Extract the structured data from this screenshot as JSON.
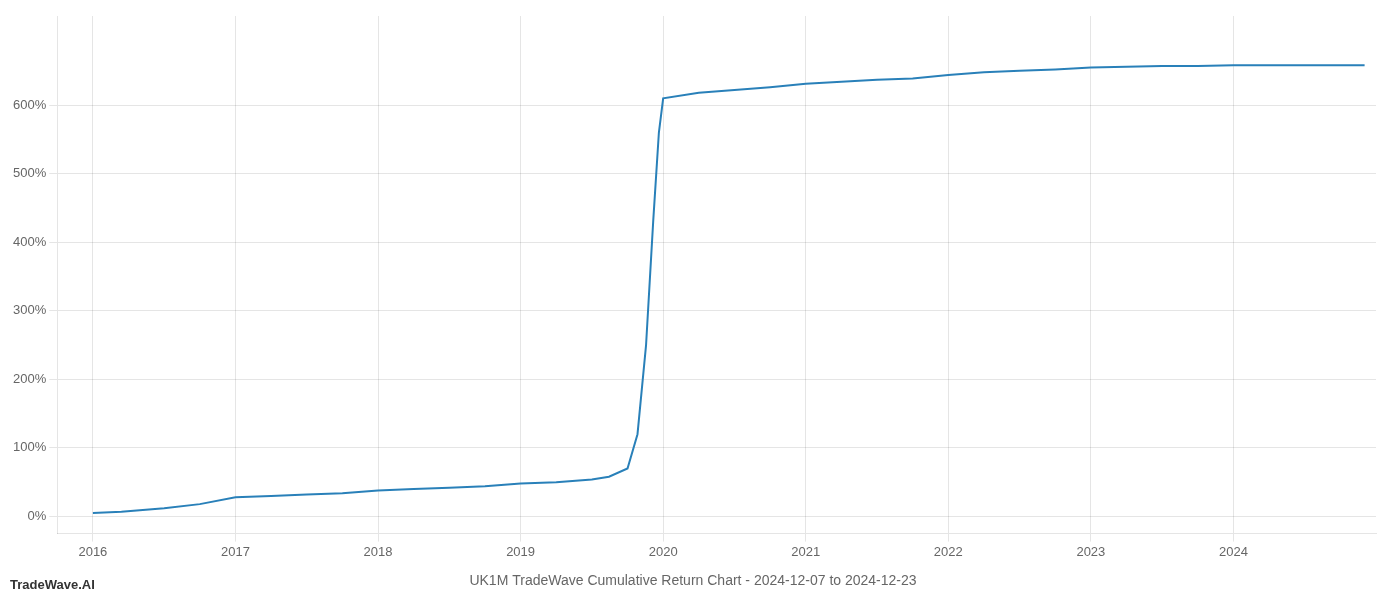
{
  "chart_data": {
    "type": "line",
    "title": "UK1M TradeWave Cumulative Return Chart - 2024-12-07 to 2024-12-23",
    "annotations": [
      "TradeWave.AI"
    ],
    "x": [
      2016.0,
      2016.2,
      2016.5,
      2016.75,
      2017.0,
      2017.25,
      2017.5,
      2017.75,
      2018.0,
      2018.25,
      2018.5,
      2018.75,
      2019.0,
      2019.25,
      2019.5,
      2019.62,
      2019.75,
      2019.82,
      2019.88,
      2019.93,
      2019.97,
      2020.0,
      2020.25,
      2020.5,
      2020.75,
      2021.0,
      2021.25,
      2021.5,
      2021.75,
      2022.0,
      2022.25,
      2022.5,
      2022.75,
      2023.0,
      2023.25,
      2023.5,
      2023.75,
      2024.0,
      2024.25,
      2024.5,
      2024.75,
      2024.92
    ],
    "values": [
      5,
      7,
      12,
      18,
      28,
      30,
      32,
      34,
      38,
      40,
      42,
      44,
      48,
      50,
      54,
      58,
      70,
      120,
      250,
      430,
      560,
      610,
      618,
      622,
      626,
      631,
      634,
      637,
      639,
      644,
      648,
      650,
      652,
      655,
      656,
      657,
      657,
      658,
      658,
      658,
      658,
      658
    ],
    "color": "#2980b9",
    "xlim": [
      2015.75,
      2025.0
    ],
    "ylim": [
      -25,
      730
    ],
    "xticks": [
      2016,
      2017,
      2018,
      2019,
      2020,
      2021,
      2022,
      2023,
      2024
    ],
    "yticks": [
      {
        "value": 0,
        "label": "0%"
      },
      {
        "value": 100,
        "label": "100%"
      },
      {
        "value": 200,
        "label": "200%"
      },
      {
        "value": 300,
        "label": "300%"
      },
      {
        "value": 400,
        "label": "400%"
      },
      {
        "value": 500,
        "label": "500%"
      },
      {
        "value": 600,
        "label": "600%"
      }
    ],
    "grid": true
  }
}
